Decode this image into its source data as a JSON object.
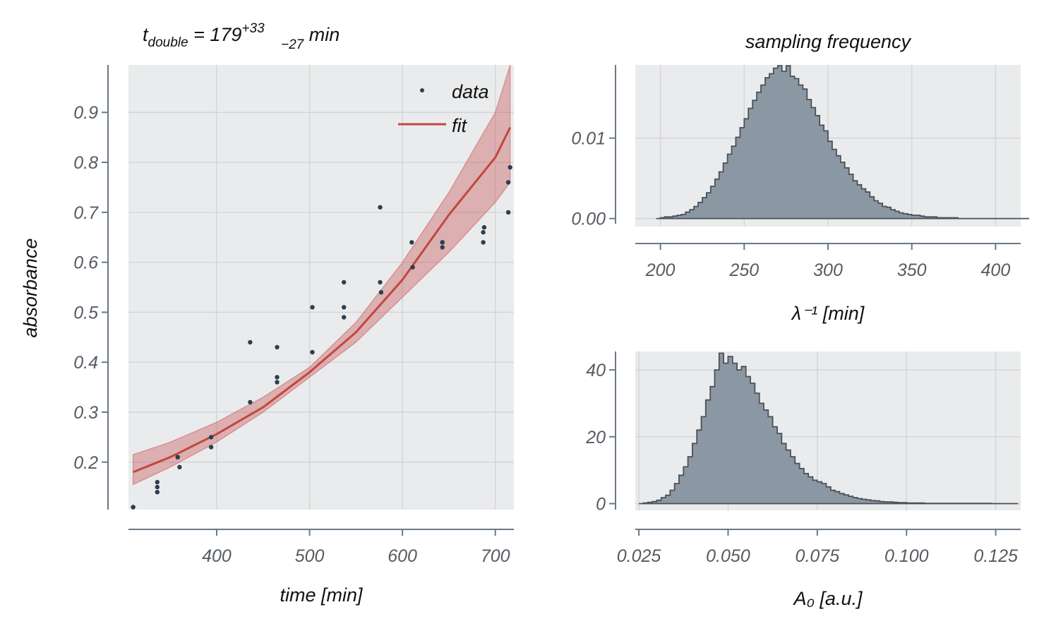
{
  "colors": {
    "data": "#2d3e50",
    "fit": "#c2473f",
    "band": "#c9565a",
    "hist_fill": "#8b98a4",
    "hist_edge": "#4a5058",
    "panel_bg": "#eaebec",
    "spine": "#6b7886"
  },
  "chart_data": [
    {
      "type": "scatter",
      "title_main": "t",
      "title_sub": "double",
      "title_eq": " = 179",
      "title_sup": "+33",
      "title_lower": "−27",
      "title_unit": " min",
      "xlabel": "time [min]",
      "ylabel": "absorbance",
      "xlim": [
        305,
        720
      ],
      "ylim": [
        0.105,
        0.995
      ],
      "xticks": [
        "400",
        "500",
        "600",
        "700"
      ],
      "yticks": [
        "0.2",
        "0.3",
        "0.4",
        "0.5",
        "0.6",
        "0.7",
        "0.8",
        "0.9"
      ],
      "grid": true,
      "legend": {
        "position": "top-right",
        "entries": [
          "data",
          "fit"
        ]
      },
      "series": [
        {
          "name": "data",
          "kind": "points",
          "x": [
            310,
            310,
            336,
            336,
            336,
            358,
            358,
            360,
            394,
            394,
            436,
            436,
            465,
            465,
            465,
            503,
            503,
            537,
            537,
            537,
            576,
            576,
            577,
            610,
            611,
            643,
            643,
            643,
            687,
            687,
            688,
            714,
            714,
            716
          ],
          "y": [
            0.11,
            0.11,
            0.16,
            0.15,
            0.14,
            0.21,
            0.21,
            0.19,
            0.25,
            0.23,
            0.44,
            0.32,
            0.43,
            0.37,
            0.36,
            0.51,
            0.42,
            0.56,
            0.51,
            0.49,
            0.71,
            0.56,
            0.54,
            0.64,
            0.59,
            0.64,
            0.64,
            0.63,
            0.64,
            0.66,
            0.67,
            0.76,
            0.7,
            0.79
          ]
        },
        {
          "name": "fit",
          "kind": "line",
          "x": [
            310,
            350,
            400,
            450,
            500,
            550,
            600,
            650,
            700,
            716
          ],
          "y": [
            0.18,
            0.21,
            0.256,
            0.31,
            0.38,
            0.46,
            0.565,
            0.695,
            0.81,
            0.87
          ]
        },
        {
          "kind": "band",
          "x": [
            310,
            350,
            400,
            450,
            500,
            550,
            600,
            650,
            700,
            716
          ],
          "lower": [
            0.155,
            0.19,
            0.24,
            0.3,
            0.37,
            0.44,
            0.53,
            0.62,
            0.72,
            0.76
          ],
          "upper": [
            0.215,
            0.24,
            0.28,
            0.33,
            0.39,
            0.48,
            0.6,
            0.74,
            0.9,
            0.995
          ]
        }
      ]
    },
    {
      "type": "bar",
      "subtype": "histogram",
      "title": "sampling frequency",
      "xlabel": "λ⁻¹ [min]",
      "ylabel": "",
      "xlim": [
        185,
        415
      ],
      "ylim": [
        -0.001,
        0.0191
      ],
      "xticks": [
        "200",
        "250",
        "300",
        "350",
        "400"
      ],
      "yticks": [
        "0.00",
        "0.01"
      ],
      "grid": true,
      "bin_width": 2.5,
      "bin_start": 197.5,
      "values": [
        0,
        0.0001,
        0.0002,
        0.0002,
        0.0003,
        0.0004,
        0.0005,
        0.0008,
        0.0011,
        0.0015,
        0.002,
        0.0026,
        0.0032,
        0.004,
        0.0049,
        0.0058,
        0.0069,
        0.008,
        0.009,
        0.0101,
        0.0113,
        0.0124,
        0.0137,
        0.0147,
        0.0157,
        0.0166,
        0.0175,
        0.018,
        0.0187,
        0.019,
        0.0183,
        0.019,
        0.0177,
        0.0174,
        0.0166,
        0.0161,
        0.0148,
        0.0138,
        0.0128,
        0.0116,
        0.0109,
        0.0096,
        0.0086,
        0.0078,
        0.007,
        0.0063,
        0.0055,
        0.0047,
        0.0042,
        0.0037,
        0.0033,
        0.0027,
        0.0022,
        0.0019,
        0.0015,
        0.0014,
        0.0011,
        0.0009,
        0.0007,
        0.0006,
        0.0005,
        0.0004,
        0.0004,
        0.0003,
        0.0002,
        0.0002,
        0.0002,
        0.0001,
        0.0001,
        0.0001,
        0.0001,
        0.0001,
        0,
        0,
        0,
        0,
        0,
        0,
        0,
        0,
        0,
        0,
        0,
        0,
        0,
        0,
        0,
        0,
        0
      ]
    },
    {
      "type": "bar",
      "subtype": "histogram",
      "title": "",
      "xlabel": "A₀ [a.u.]",
      "ylabel": "",
      "xlim": [
        0.024,
        0.132
      ],
      "ylim": [
        -2,
        45.5
      ],
      "xticks": [
        "0.025",
        "0.050",
        "0.075",
        "0.100",
        "0.125"
      ],
      "yticks": [
        "0",
        "20",
        "40"
      ],
      "grid": true,
      "bin_width": 0.00125,
      "bin_start": 0.025,
      "values": [
        0,
        0.2,
        0.4,
        0.6,
        1,
        1.8,
        2.5,
        4,
        6,
        8.5,
        11,
        14,
        18,
        22,
        26,
        31,
        35,
        40,
        45,
        42,
        44,
        42,
        40,
        41,
        38,
        36,
        33,
        30,
        28,
        26,
        23,
        21,
        18,
        16,
        14,
        12,
        10.5,
        9,
        8,
        7,
        6.5,
        6,
        5,
        4,
        3.6,
        3,
        2.6,
        2.2,
        1.8,
        1.5,
        1.3,
        1.1,
        0.9,
        0.8,
        0.6,
        0.5,
        0.5,
        0.4,
        0.3,
        0.3,
        0.2,
        0.2,
        0.2,
        0.2,
        0.1,
        0.1,
        0.1,
        0.1,
        0.1,
        0.1,
        0.1,
        0.1,
        0.1,
        0.1,
        0.1,
        0.1,
        0.1,
        0.1,
        0.1,
        0,
        0,
        0,
        0,
        0,
        0
      ]
    }
  ]
}
